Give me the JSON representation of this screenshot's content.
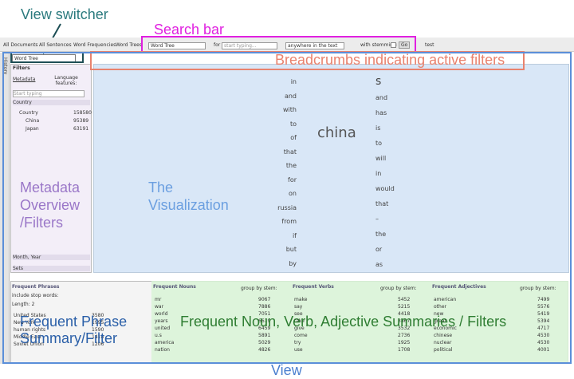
{
  "annotations": {
    "view_switcher": "View switcher",
    "search_bar": "Search bar",
    "breadcrumbs": "Breadcrumbs indicating active filters",
    "metadata": [
      "Metadata",
      "Overview",
      "/Filters"
    ],
    "visualization": [
      "The",
      "Visualization"
    ],
    "phrase": [
      "Frequent Phrase",
      "Summary/Filter"
    ],
    "pos": "Frequent Noun, Verb, Adjective Summaries / Filters",
    "view": "View"
  },
  "toolbar": {
    "tabs": [
      "All Documents",
      "All Sentences",
      "Word Frequencies",
      "Word Trees"
    ],
    "view_select": "Word Tree",
    "for": "for",
    "placeholder": "start typing...",
    "scope": "anywhere in the text",
    "stemming": "with stemming:",
    "go": "Go",
    "test": "test"
  },
  "sidebar": {
    "history": "History",
    "view_select": "Word Tree",
    "filters": "Filters",
    "metadata": "Metadata",
    "language": "Language features:",
    "search": "Start typing",
    "country_header": "Country",
    "tree": [
      [
        "Country",
        "158580"
      ],
      [
        "China",
        "95389"
      ],
      [
        "Japan",
        "63191"
      ]
    ],
    "month": "Month, Year",
    "sets": "Sets"
  },
  "word_tree": {
    "root": "china",
    "left": [
      "in",
      "and",
      "with",
      "to",
      "of",
      "that",
      "the",
      "for",
      "on",
      "russia",
      "from",
      "if",
      "but",
      "by"
    ],
    "right": [
      "s",
      "and",
      "has",
      "is",
      "to",
      "will",
      "in",
      "would",
      "that",
      "–",
      "the",
      "or",
      "as"
    ]
  },
  "panels": [
    {
      "title": "Frequent Phrases",
      "options": [
        "include stop words:",
        "Length: 2"
      ],
      "rows": [
        [
          "United States",
          "3580"
        ],
        [
          "New York",
          "1995"
        ],
        [
          "human rights",
          "1590"
        ],
        [
          "Middle East",
          "1418"
        ],
        [
          "Soviet Union",
          "1206"
        ]
      ]
    },
    {
      "title": "Frequent Nouns",
      "group": "group by stem:",
      "rows": [
        [
          "mr",
          "9067"
        ],
        [
          "war",
          "7886"
        ],
        [
          "world",
          "7051"
        ],
        [
          "years",
          "6619"
        ],
        [
          "united",
          "6459"
        ],
        [
          "u.s",
          "5891"
        ],
        [
          "america",
          "5029"
        ],
        [
          "nation",
          "4826"
        ]
      ]
    },
    {
      "title": "Frequent Verbs",
      "group": "group by stem:",
      "rows": [
        [
          "make",
          "5452"
        ],
        [
          "say",
          "5215"
        ],
        [
          "see",
          "4418"
        ],
        [
          "take",
          "3867"
        ],
        [
          "give",
          "3532"
        ],
        [
          "come",
          "2736"
        ],
        [
          "try",
          "1925"
        ],
        [
          "use",
          "1708"
        ]
      ]
    },
    {
      "title": "Frequent Adjectives",
      "group": "group by stem:",
      "rows": [
        [
          "american",
          "7499"
        ],
        [
          "other",
          "5576"
        ],
        [
          "new",
          "5419"
        ],
        [
          "great",
          "5394"
        ],
        [
          "economic",
          "4717"
        ],
        [
          "chinese",
          "4530"
        ],
        [
          "nuclear",
          "4530"
        ],
        [
          "political",
          "4001"
        ]
      ]
    }
  ]
}
